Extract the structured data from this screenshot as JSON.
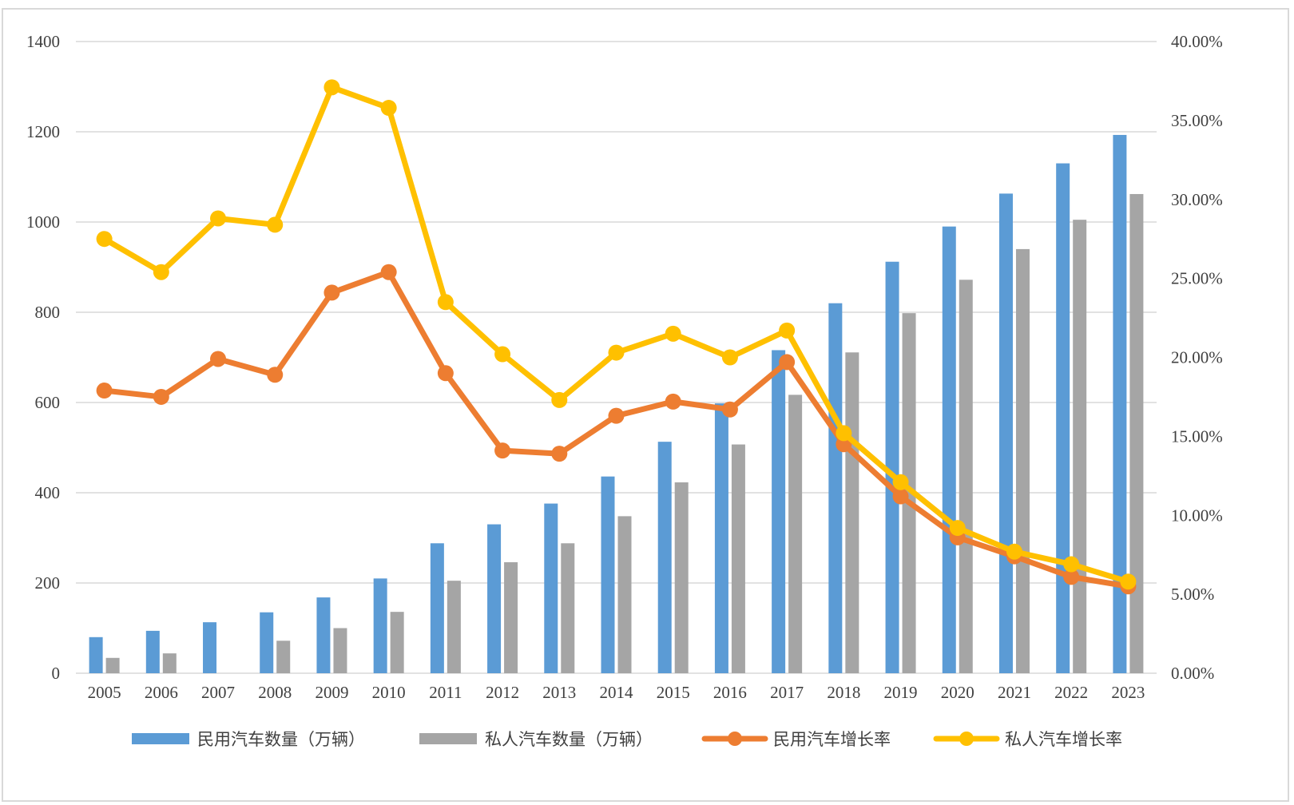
{
  "chart_data": {
    "type": "bar",
    "title": "",
    "categories": [
      "2005",
      "2006",
      "2007",
      "2008",
      "2009",
      "2010",
      "2011",
      "2012",
      "2013",
      "2014",
      "2015",
      "2016",
      "2017",
      "2018",
      "2019",
      "2020",
      "2021",
      "2022",
      "2023"
    ],
    "series": [
      {
        "name": "民用汽车数量（万辆）",
        "type": "bar",
        "axis": "left",
        "values": [
          80,
          94,
          113,
          135,
          168,
          210,
          288,
          330,
          376,
          436,
          513,
          598,
          716,
          820,
          912,
          990,
          1063,
          1130,
          1193
        ]
      },
      {
        "name": "私人汽车数量（万辆）",
        "type": "bar",
        "axis": "left",
        "values": [
          34,
          44,
          null,
          72,
          100,
          136,
          205,
          246,
          288,
          348,
          423,
          507,
          617,
          711,
          798,
          872,
          940,
          1005,
          1062
        ]
      },
      {
        "name": "民用汽车增长率",
        "type": "line",
        "axis": "right",
        "values": [
          17.9,
          17.5,
          19.9,
          18.9,
          24.1,
          25.4,
          19.0,
          14.1,
          13.9,
          16.3,
          17.2,
          16.7,
          19.7,
          14.5,
          11.2,
          8.6,
          7.4,
          6.1,
          5.5
        ]
      },
      {
        "name": "私人汽车增长率",
        "type": "line",
        "axis": "right",
        "values": [
          27.5,
          25.4,
          28.8,
          28.4,
          37.1,
          35.8,
          23.5,
          20.2,
          17.3,
          20.3,
          21.5,
          20.0,
          21.7,
          15.2,
          12.1,
          9.2,
          7.7,
          6.9,
          5.8
        ]
      }
    ],
    "y_left": {
      "ylim": [
        0,
        1400
      ],
      "ticks": [
        "0",
        "200",
        "400",
        "600",
        "800",
        "1000",
        "1200",
        "1400"
      ]
    },
    "y_right": {
      "ylim": [
        0,
        40
      ],
      "ticks": [
        "0.00%",
        "5.00%",
        "10.00%",
        "15.00%",
        "20.00%",
        "25.00%",
        "30.00%",
        "35.00%",
        "40.00%"
      ]
    },
    "grid": true,
    "legend_position": "bottom",
    "colors": {
      "bar1": "#5b9bd5",
      "bar2": "#a5a5a5",
      "line1": "#ed7d31",
      "line2": "#ffc000",
      "grid": "#d9d9d9",
      "text": "#404040"
    }
  }
}
